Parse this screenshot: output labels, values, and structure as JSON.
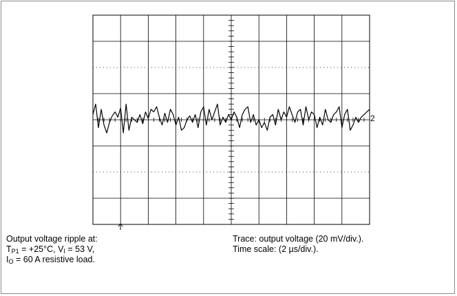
{
  "chart_data": {
    "type": "line",
    "title": "",
    "xlabel": "",
    "ylabel": "",
    "grid": true,
    "x_divisions": 10,
    "y_divisions": 8,
    "xlim": [
      0,
      20
    ],
    "ylim": [
      -80,
      80
    ],
    "x_unit": "µs",
    "y_unit": "mV",
    "trace_marker": "2",
    "series": [
      {
        "values_desc": "output voltage ripple",
        "x": [
          0.0,
          0.2,
          0.4,
          0.6,
          0.8,
          1.0,
          1.2,
          1.4,
          1.6,
          1.8,
          2.0,
          2.2,
          2.4,
          2.6,
          2.8,
          3.0,
          3.2,
          3.4,
          3.6,
          3.8,
          4.0,
          4.2,
          4.4,
          4.6,
          4.8,
          5.0,
          5.2,
          5.4,
          5.6,
          5.8,
          6.0,
          6.2,
          6.4,
          6.6,
          6.8,
          7.0,
          7.2,
          7.4,
          7.6,
          7.8,
          8.0,
          8.2,
          8.4,
          8.6,
          8.8,
          9.0,
          9.2,
          9.4,
          9.6,
          9.8,
          10.0,
          10.2,
          10.4,
          10.6,
          10.8,
          11.0,
          11.2,
          11.4,
          11.6,
          11.8,
          12.0,
          12.2,
          12.4,
          12.6,
          12.8,
          13.0,
          13.2,
          13.4,
          13.6,
          13.8,
          14.0,
          14.2,
          14.4,
          14.6,
          14.8,
          15.0,
          15.2,
          15.4,
          15.6,
          15.8,
          16.0,
          16.2,
          16.4,
          16.6,
          16.8,
          17.0,
          17.2,
          17.4,
          17.6,
          17.8,
          18.0,
          18.2,
          18.4,
          18.6,
          18.8,
          19.0,
          19.2,
          19.4,
          19.6,
          19.8,
          20.0
        ],
        "y": [
          4,
          12,
          -6,
          8,
          -4,
          -10,
          -2,
          3,
          6,
          2,
          9,
          -10,
          12,
          -8,
          2,
          0,
          -2,
          4,
          -3,
          6,
          1,
          8,
          6,
          10,
          2,
          -4,
          5,
          -2,
          8,
          4,
          -4,
          2,
          -8,
          -6,
          0,
          3,
          -2,
          4,
          -6,
          6,
          10,
          -4,
          8,
          0,
          6,
          12,
          -4,
          2,
          -2,
          4,
          0,
          6,
          2,
          -6,
          4,
          8,
          10,
          -2,
          4,
          -4,
          0,
          -6,
          -2,
          -8,
          2,
          4,
          -4,
          8,
          0,
          6,
          2,
          10,
          4,
          -2,
          6,
          8,
          -4,
          10,
          0,
          6,
          4,
          -6,
          2,
          -4,
          8,
          0,
          -2,
          4,
          6,
          10,
          -6,
          4,
          8,
          -8,
          -4,
          2,
          -2,
          2,
          4,
          6,
          8
        ]
      }
    ]
  },
  "caption": {
    "left_line1": "Output voltage ripple  at:",
    "left_line2_T": "T",
    "left_line2_Tsub": "P1",
    "left_line2_rest_a": " = +25°C, V",
    "left_line2_Vsub": "I",
    "left_line2_rest_b": " = 53 V,",
    "left_line3_I": "I",
    "left_line3_Isub": "O",
    "left_line3_rest": " = 60 A resistive load.",
    "right_line1": "Trace: output voltage (20 mV/div.).",
    "right_line2": "Time scale: (2 µs/div.)."
  }
}
